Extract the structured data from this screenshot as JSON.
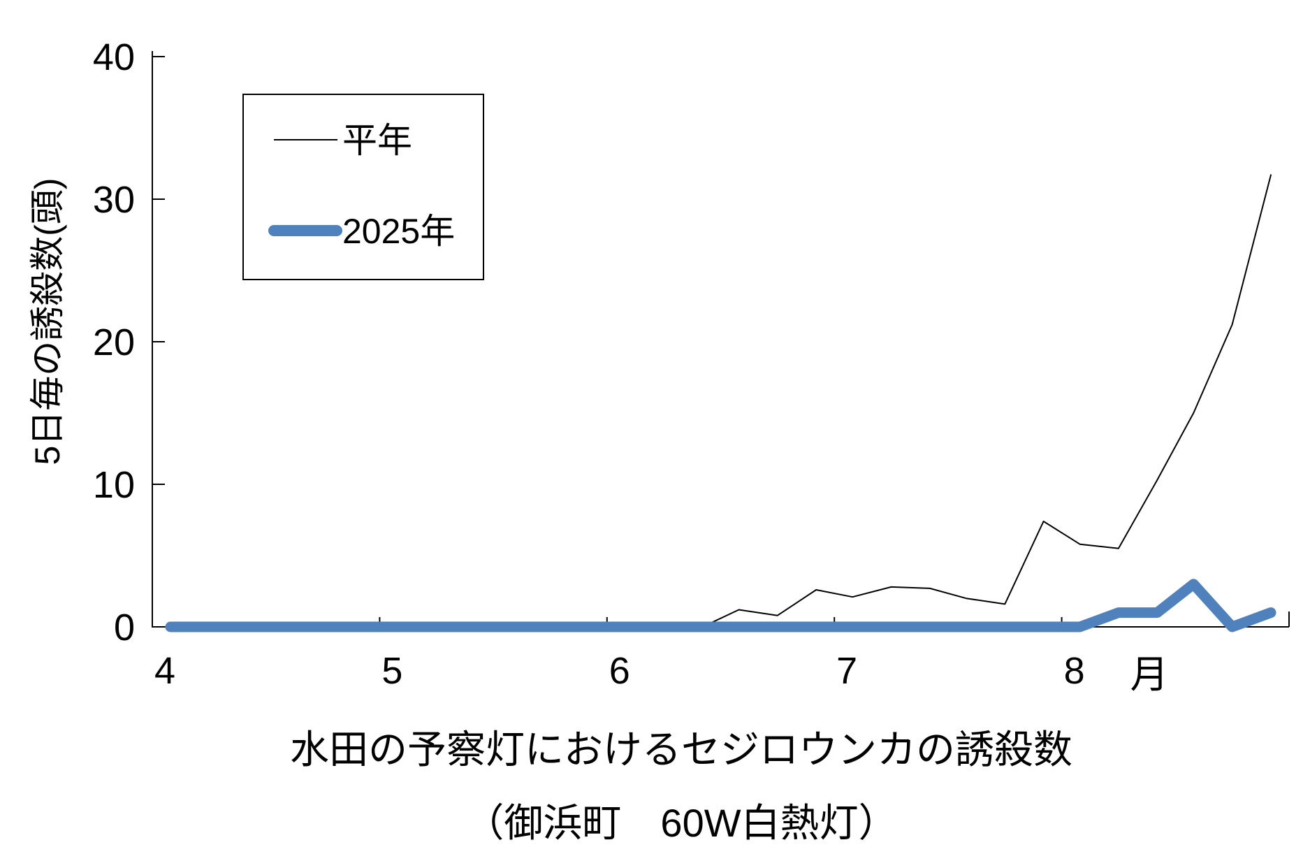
{
  "chart_data": {
    "type": "line",
    "title_line1": "水田の予察灯におけるセジロウンカの誘殺数",
    "title_line2": "（御浜町　60W白熱灯）",
    "ylabel": "5日毎の誘殺数(頭)",
    "x_unit_label": "月",
    "ylim": [
      0,
      40
    ],
    "y_ticks": [
      0,
      10,
      20,
      30,
      40
    ],
    "x_tick_labels": [
      "4",
      "5",
      "6",
      "7",
      "8"
    ],
    "x_tick_marks": [
      5,
      6,
      7,
      8,
      9
    ],
    "grid": "off",
    "legend_position": "upper-left-inside",
    "x_unit_note": "x values are months (decimal), data every 5 days",
    "series": [
      {
        "name": "平年",
        "color": "#000000",
        "stroke_width": 2,
        "legend_stroke_width": 2,
        "x": [
          4.08,
          4.25,
          4.42,
          4.58,
          4.75,
          4.92,
          5.08,
          5.25,
          5.42,
          5.58,
          5.75,
          5.92,
          6.08,
          6.25,
          6.42,
          6.58,
          6.75,
          6.92,
          7.08,
          7.25,
          7.42,
          7.58,
          7.75,
          7.92,
          8.08,
          8.25,
          8.42,
          8.58,
          8.75,
          8.92
        ],
        "values": [
          0,
          0,
          0,
          0,
          0,
          0,
          0,
          0,
          0,
          0,
          0,
          0,
          0,
          0,
          0,
          1.2,
          0.8,
          2.6,
          2.1,
          2.8,
          2.7,
          2.0,
          1.6,
          7.4,
          5.8,
          5.5,
          10.3,
          15.0,
          21.2,
          31.7
        ]
      },
      {
        "name": "2025年",
        "color": "#4F81BD",
        "stroke_width": 15,
        "legend_stroke_width": 16,
        "x": [
          4.08,
          4.25,
          4.42,
          4.58,
          4.75,
          4.92,
          5.08,
          5.25,
          5.42,
          5.58,
          5.75,
          5.92,
          6.08,
          6.25,
          6.42,
          6.58,
          6.75,
          6.92,
          7.08,
          7.25,
          7.42,
          7.58,
          7.75,
          7.92,
          8.08,
          8.25,
          8.42,
          8.58,
          8.75,
          8.92
        ],
        "values": [
          0,
          0,
          0,
          0,
          0,
          0,
          0,
          0,
          0,
          0,
          0,
          0,
          0,
          0,
          0,
          0,
          0,
          0,
          0,
          0,
          0,
          0,
          0,
          0,
          0,
          1,
          1,
          3,
          0,
          1
        ]
      }
    ]
  },
  "legend": {
    "item1_label": "平年",
    "item2_label": "2025年"
  },
  "axis_color": "#000000"
}
